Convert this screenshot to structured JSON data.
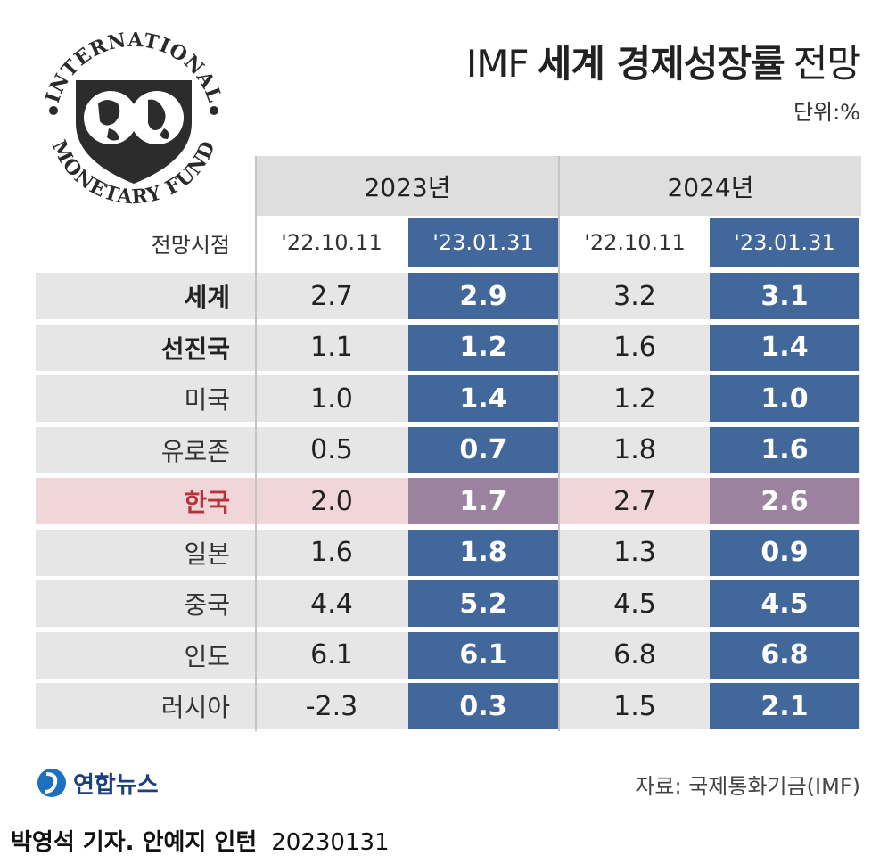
{
  "logo": {
    "text_top": "INTERNATIONAL",
    "text_bottom": "MONETARY FUND",
    "icon": "imf-globe-logo"
  },
  "title": {
    "part1": "IMF",
    "part2": "세계 경제성장률",
    "part3": "전망"
  },
  "unit": "단위:%",
  "colors": {
    "revised_column": "#42679a",
    "korea_highlight_row": "#f1d6d9",
    "korea_revised_cell": "#9b829e",
    "korea_label": "#b5333a",
    "shaded_row": "#e6e6e6",
    "year_header": "#dedede"
  },
  "chart_data": {
    "type": "table",
    "title": "IMF 세계 경제성장률 전망",
    "unit": "단위:%",
    "year_headers": [
      "2023년",
      "2024년"
    ],
    "forecast_label": "전망시점",
    "forecast_dates": [
      "'22.10.11",
      "'23.01.31",
      "'22.10.11",
      "'23.01.31"
    ],
    "rows": [
      {
        "label": "세계",
        "values": [
          "2.7",
          "2.9",
          "3.2",
          "3.1"
        ]
      },
      {
        "label": "선진국",
        "values": [
          "1.1",
          "1.2",
          "1.6",
          "1.4"
        ]
      },
      {
        "label": "미국",
        "values": [
          "1.0",
          "1.4",
          "1.2",
          "1.0"
        ]
      },
      {
        "label": "유로존",
        "values": [
          "0.5",
          "0.7",
          "1.8",
          "1.6"
        ]
      },
      {
        "label": "한국",
        "values": [
          "2.0",
          "1.7",
          "2.7",
          "2.6"
        ]
      },
      {
        "label": "일본",
        "values": [
          "1.6",
          "1.8",
          "1.3",
          "0.9"
        ]
      },
      {
        "label": "중국",
        "values": [
          "4.4",
          "5.2",
          "4.5",
          "4.5"
        ]
      },
      {
        "label": "인도",
        "values": [
          "6.1",
          "6.1",
          "6.8",
          "6.8"
        ]
      },
      {
        "label": "러시아",
        "values": [
          "-2.3",
          "0.3",
          "1.5",
          "2.1"
        ]
      }
    ]
  },
  "source": "자료: 국제통화기금(IMF)",
  "brand": {
    "name": "연합뉴스",
    "icon": "yonhap-logo"
  },
  "credit": {
    "name": "박영석 기자. 안예지 인턴",
    "date": "20230131"
  }
}
